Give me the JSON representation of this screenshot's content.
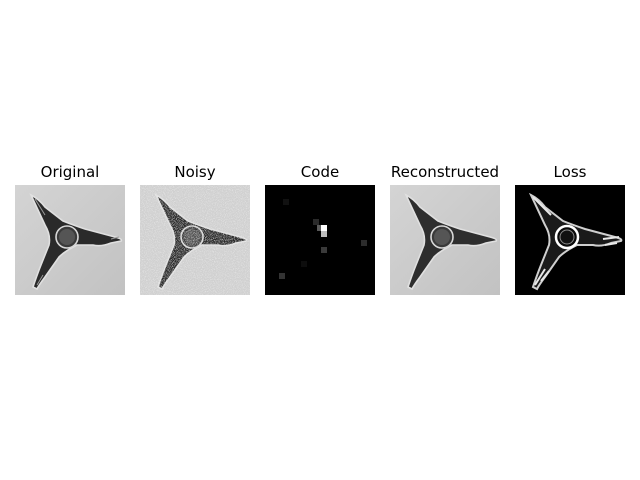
{
  "panels": [
    {
      "title": "Original"
    },
    {
      "title": "Noisy"
    },
    {
      "title": "Code"
    },
    {
      "title": "Reconstructed"
    },
    {
      "title": "Loss"
    }
  ]
}
